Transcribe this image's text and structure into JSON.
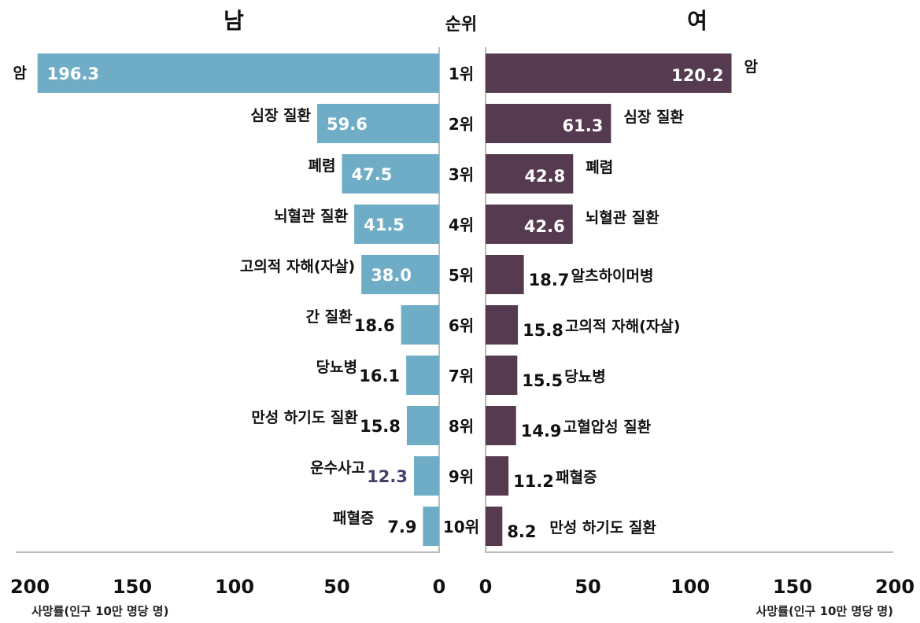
{
  "chart_data": {
    "type": "bar",
    "orientation": "horizontal-butterfly",
    "title_left": "남",
    "title_center": "순위",
    "title_right": "여",
    "ranks": [
      "1위",
      "2위",
      "3위",
      "4위",
      "5위",
      "6위",
      "7위",
      "8위",
      "9위",
      "10위"
    ],
    "series": [
      {
        "name": "남",
        "color": "#6fadc6",
        "categories": [
          "암",
          "심장 질환",
          "폐렴",
          "뇌혈관 질환",
          "고의적 자해(자살)",
          "간 질환",
          "당뇨병",
          "만성 하기도 질환",
          "운수사고",
          "패혈증"
        ],
        "values": [
          196.3,
          59.6,
          47.5,
          41.5,
          38.0,
          18.6,
          16.1,
          15.8,
          12.3,
          7.9
        ],
        "value_labels": [
          "196.3",
          "59.6",
          "47.5",
          "41.5",
          "38.0",
          "18.6",
          "16.1",
          "15.8",
          "12.3",
          "7.9"
        ]
      },
      {
        "name": "여",
        "color": "#553a50",
        "categories": [
          "암",
          "심장 질환",
          "폐렴",
          "뇌혈관 질환",
          "알츠하이머병",
          "고의적 자해(자살)",
          "당뇨병",
          "고혈압성 질환",
          "패혈증",
          "만성 하기도 질환"
        ],
        "values": [
          120.2,
          61.3,
          42.8,
          42.6,
          18.7,
          15.8,
          15.5,
          14.9,
          11.2,
          8.2
        ],
        "value_labels": [
          "120.2",
          "61.3",
          "42.8",
          "42.6",
          "18.7",
          "15.8",
          "15.5",
          "14.9",
          "11.2",
          "8.2"
        ]
      }
    ],
    "xlim": [
      0,
      200
    ],
    "xticks": [
      "0",
      "50",
      "100",
      "150",
      "200"
    ],
    "xlabel": "사망률(인구 10만 명당 명)",
    "grid": false,
    "legend": "none"
  }
}
